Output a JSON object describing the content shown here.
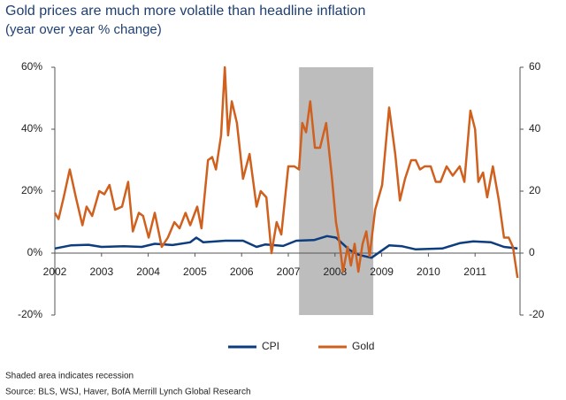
{
  "chart_data": {
    "type": "line",
    "title": "Gold prices are much more volatile than headline inflation",
    "subtitle": "(year over year % change)",
    "xlim": [
      2002,
      2012
    ],
    "xticks": [
      2002,
      2003,
      2004,
      2005,
      2006,
      2007,
      2008,
      2009,
      2010,
      2011
    ],
    "ylim": [
      -20,
      60
    ],
    "yticks": [
      {
        "value": 60,
        "label": "60%"
      },
      {
        "value": 40,
        "label": "40%"
      },
      {
        "value": 20,
        "label": "20%"
      },
      {
        "value": 0,
        "label": "0%"
      },
      {
        "value": -20,
        "label": "-20%"
      }
    ],
    "y2lim": [
      -20,
      60
    ],
    "y2ticks": [
      60,
      40,
      20,
      0,
      -20
    ],
    "shaded_region": [
      2007.23,
      2008.82
    ],
    "legend": "bottom",
    "series": [
      {
        "name": "CPI",
        "color": "#0d3d7e",
        "axis": "y",
        "x": [
          2002,
          2002.34,
          2002.72,
          2003.0,
          2003.48,
          2003.86,
          2004.14,
          2004.52,
          2004.9,
          2005.03,
          2005.18,
          2005.65,
          2006.03,
          2006.32,
          2006.51,
          2006.89,
          2007.17,
          2007.55,
          2007.83,
          2008.02,
          2008.31,
          2008.5,
          2008.78,
          2008.97,
          2009.16,
          2009.44,
          2009.73,
          2010.3,
          2010.67,
          2010.96,
          2011.34,
          2011.62,
          2011.91
        ],
        "values": [
          1.5,
          2.5,
          2.7,
          2.0,
          2.2,
          2.0,
          3.0,
          2.6,
          3.5,
          5.0,
          3.5,
          4.0,
          4.0,
          2.0,
          2.8,
          2.3,
          4.0,
          4.2,
          5.5,
          5.0,
          1.0,
          -0.5,
          -1.5,
          0.5,
          2.5,
          2.2,
          1.2,
          1.5,
          3.2,
          3.8,
          3.5,
          2.0,
          1.5
        ]
      },
      {
        "name": "Gold",
        "color": "#d0601e",
        "axis": "y2",
        "x": [
          2002,
          2002.08,
          2002.19,
          2002.32,
          2002.45,
          2002.59,
          2002.68,
          2002.8,
          2002.95,
          2003.06,
          2003.17,
          2003.29,
          2003.44,
          2003.57,
          2003.67,
          2003.8,
          2003.89,
          2004.01,
          2004.14,
          2004.29,
          2004.42,
          2004.56,
          2004.67,
          2004.8,
          2004.9,
          2005.05,
          2005.14,
          2005.28,
          2005.37,
          2005.45,
          2005.56,
          2005.64,
          2005.71,
          2005.79,
          2005.9,
          2006.03,
          2006.17,
          2006.32,
          2006.41,
          2006.53,
          2006.64,
          2006.75,
          2006.85,
          2007.0,
          2007.13,
          2007.23,
          2007.3,
          2007.38,
          2007.47,
          2007.57,
          2007.68,
          2007.81,
          2007.93,
          2008.02,
          2008.1,
          2008.17,
          2008.27,
          2008.34,
          2008.42,
          2008.5,
          2008.59,
          2008.67,
          2008.74,
          2008.86,
          2009.01,
          2009.16,
          2009.29,
          2009.39,
          2009.5,
          2009.63,
          2009.73,
          2009.82,
          2009.92,
          2010.05,
          2010.16,
          2010.26,
          2010.39,
          2010.52,
          2010.67,
          2010.77,
          2010.9,
          2011.0,
          2011.07,
          2011.17,
          2011.26,
          2011.38,
          2011.51,
          2011.62,
          2011.72,
          2011.81,
          2011.91
        ],
        "values": [
          13,
          11,
          18,
          27,
          18,
          9,
          15,
          12,
          20,
          19,
          22,
          14,
          15,
          23,
          7,
          13,
          12,
          5,
          13,
          2,
          5,
          10,
          8,
          13,
          9,
          15,
          8,
          30,
          31,
          27,
          38,
          60,
          38,
          49,
          42,
          24,
          32,
          15,
          20,
          18,
          0,
          10,
          6,
          28,
          28,
          27,
          42,
          39,
          49,
          34,
          34,
          42,
          25,
          10,
          3,
          -6,
          2,
          -4,
          3,
          -6,
          3,
          7,
          -1,
          14,
          22,
          47,
          32,
          17,
          24,
          30,
          30,
          27,
          28,
          28,
          23,
          23,
          28,
          25,
          28,
          23,
          46,
          40,
          23,
          26,
          18,
          28,
          17,
          5,
          5,
          2,
          -8
        ]
      }
    ],
    "notes": [
      "Shaded area indicates recession",
      "Source: BLS, WSJ, Haver, BofA Merrill Lynch Global Research"
    ]
  }
}
